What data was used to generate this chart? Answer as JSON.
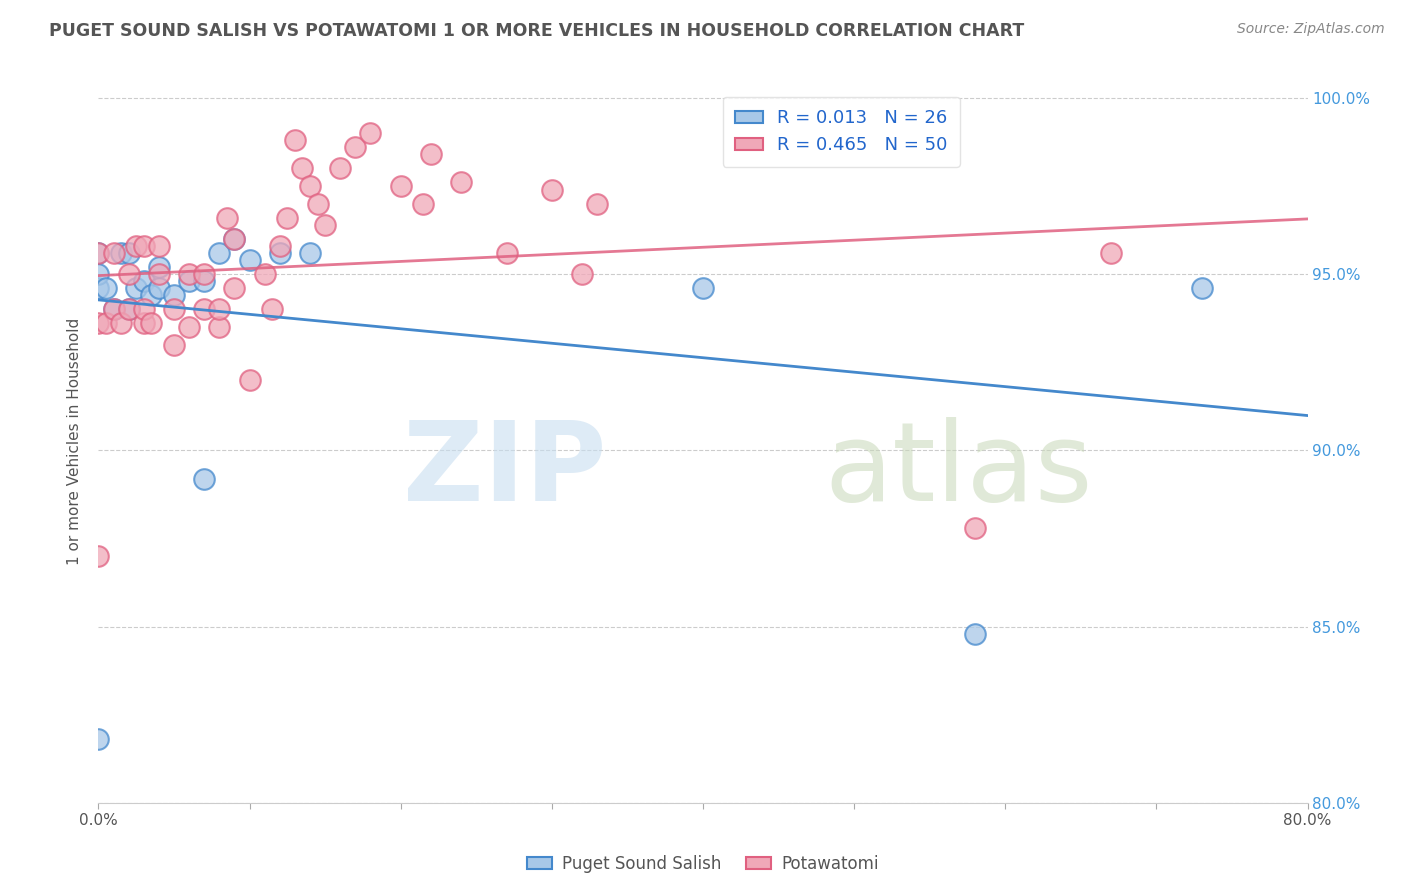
{
  "title": "PUGET SOUND SALISH VS POTAWATOMI 1 OR MORE VEHICLES IN HOUSEHOLD CORRELATION CHART",
  "source": "Source: ZipAtlas.com",
  "ylabel": "1 or more Vehicles in Household",
  "legend_labels": [
    "Puget Sound Salish",
    "Potawatomi"
  ],
  "xlim": [
    0.0,
    0.8
  ],
  "ylim": [
    0.8,
    1.005
  ],
  "xticks": [
    0.0,
    0.1,
    0.2,
    0.3,
    0.4,
    0.5,
    0.6,
    0.7,
    0.8
  ],
  "xticklabels": [
    "0.0%",
    "",
    "",
    "",
    "",
    "",
    "",
    "",
    "80.0%"
  ],
  "yticks": [
    0.8,
    0.85,
    0.9,
    0.95,
    1.0
  ],
  "yticklabels": [
    "80.0%",
    "85.0%",
    "90.0%",
    "95.0%",
    "100.0%"
  ],
  "blue_color": "#A8C8E8",
  "pink_color": "#F0A8B8",
  "blue_line_color": "#4488CC",
  "pink_line_color": "#E06080",
  "R_blue": 0.013,
  "N_blue": 26,
  "R_pink": 0.465,
  "N_pink": 50,
  "blue_points_x": [
    0.0,
    0.0,
    0.0,
    0.0,
    0.005,
    0.01,
    0.015,
    0.02,
    0.02,
    0.025,
    0.03,
    0.035,
    0.04,
    0.04,
    0.05,
    0.06,
    0.07,
    0.07,
    0.08,
    0.09,
    0.1,
    0.12,
    0.14,
    0.4,
    0.58,
    0.73
  ],
  "blue_points_y": [
    0.818,
    0.946,
    0.95,
    0.956,
    0.946,
    0.94,
    0.956,
    0.94,
    0.956,
    0.946,
    0.948,
    0.944,
    0.946,
    0.952,
    0.944,
    0.948,
    0.892,
    0.948,
    0.956,
    0.96,
    0.954,
    0.956,
    0.956,
    0.946,
    0.848,
    0.946
  ],
  "pink_points_x": [
    0.0,
    0.0,
    0.0,
    0.005,
    0.01,
    0.01,
    0.015,
    0.02,
    0.02,
    0.025,
    0.03,
    0.03,
    0.03,
    0.035,
    0.04,
    0.04,
    0.05,
    0.05,
    0.06,
    0.06,
    0.07,
    0.07,
    0.08,
    0.08,
    0.085,
    0.09,
    0.09,
    0.1,
    0.11,
    0.115,
    0.12,
    0.125,
    0.13,
    0.135,
    0.14,
    0.145,
    0.15,
    0.16,
    0.17,
    0.18,
    0.2,
    0.215,
    0.22,
    0.24,
    0.27,
    0.3,
    0.32,
    0.33,
    0.58,
    0.67
  ],
  "pink_points_y": [
    0.87,
    0.936,
    0.956,
    0.936,
    0.94,
    0.956,
    0.936,
    0.94,
    0.95,
    0.958,
    0.936,
    0.94,
    0.958,
    0.936,
    0.95,
    0.958,
    0.93,
    0.94,
    0.935,
    0.95,
    0.94,
    0.95,
    0.935,
    0.94,
    0.966,
    0.946,
    0.96,
    0.92,
    0.95,
    0.94,
    0.958,
    0.966,
    0.988,
    0.98,
    0.975,
    0.97,
    0.964,
    0.98,
    0.986,
    0.99,
    0.975,
    0.97,
    0.984,
    0.976,
    0.956,
    0.974,
    0.95,
    0.97,
    0.878,
    0.956
  ]
}
